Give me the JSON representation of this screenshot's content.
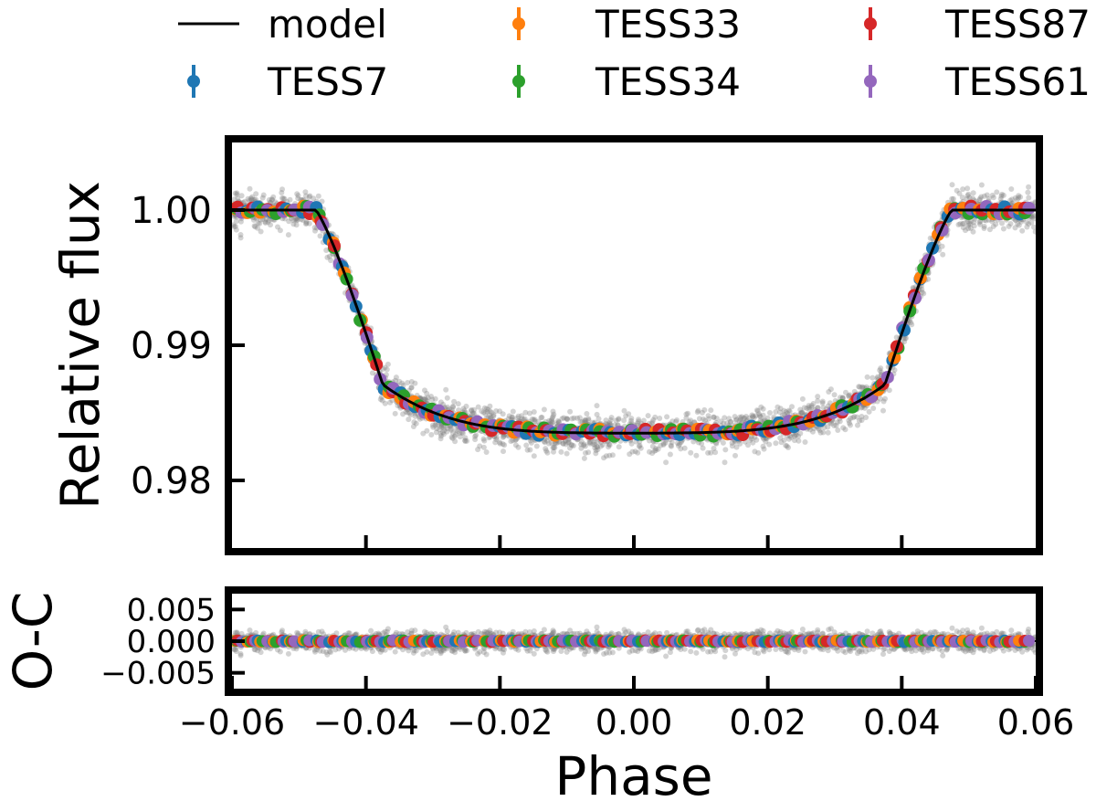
{
  "chart_data": [
    {
      "type": "scatter",
      "panel": "light-curve",
      "ylabel": "Relative flux",
      "xlim": [
        -0.06,
        0.06
      ],
      "ylim": [
        0.975,
        1.005
      ],
      "yticks": [
        0.98,
        0.99,
        1.0
      ],
      "ytick_labels": [
        "0.98",
        "0.99",
        "1.00"
      ],
      "xticks": [
        -0.04,
        -0.02,
        0.0,
        0.02,
        0.04
      ],
      "grid": false,
      "model": {
        "name": "model",
        "depth": 0.0165,
        "t1": -0.0475,
        "t2": -0.0375,
        "t3": 0.0375,
        "t4": 0.0475,
        "limb_curvature": 0.0
      },
      "raw_scatter": {
        "color": "#808080",
        "noise_sigma": 0.001
      },
      "series": [
        {
          "name": "TESS7",
          "color": "#1f77b4"
        },
        {
          "name": "TESS33",
          "color": "#ff7f0e"
        },
        {
          "name": "TESS34",
          "color": "#2ca02c"
        },
        {
          "name": "TESS61",
          "color": "#d62728"
        },
        {
          "name": "TESS87",
          "color": "#9467bd"
        }
      ]
    },
    {
      "type": "scatter",
      "panel": "residuals",
      "ylabel": "O-C",
      "xlabel": "Phase",
      "xlim": [
        -0.06,
        0.06
      ],
      "ylim": [
        -0.0075,
        0.0075
      ],
      "yticks": [
        -0.005,
        0.0,
        0.005
      ],
      "ytick_labels": [
        "−0.005",
        "0.000",
        "0.005"
      ],
      "xticks": [
        -0.06,
        -0.04,
        -0.02,
        0.0,
        0.02,
        0.04,
        0.06
      ],
      "xtick_labels": [
        "−0.06",
        "−0.04",
        "−0.02",
        "0.00",
        "0.02",
        "0.04",
        "0.06"
      ],
      "zero_line": "dotted"
    }
  ],
  "legend": {
    "position": "top",
    "entries": [
      {
        "label": "model",
        "kind": "line",
        "color": "#000000"
      },
      {
        "label": "TESS7",
        "kind": "point",
        "color": "#1f77b4"
      },
      {
        "label": "TESS33",
        "kind": "point",
        "color": "#ff7f0e"
      },
      {
        "label": "TESS34",
        "kind": "point",
        "color": "#2ca02c"
      },
      {
        "label": "TESS61",
        "kind": "point",
        "color": "#d62728"
      },
      {
        "label": "TESS87",
        "kind": "point",
        "color": "#9467bd"
      }
    ]
  }
}
